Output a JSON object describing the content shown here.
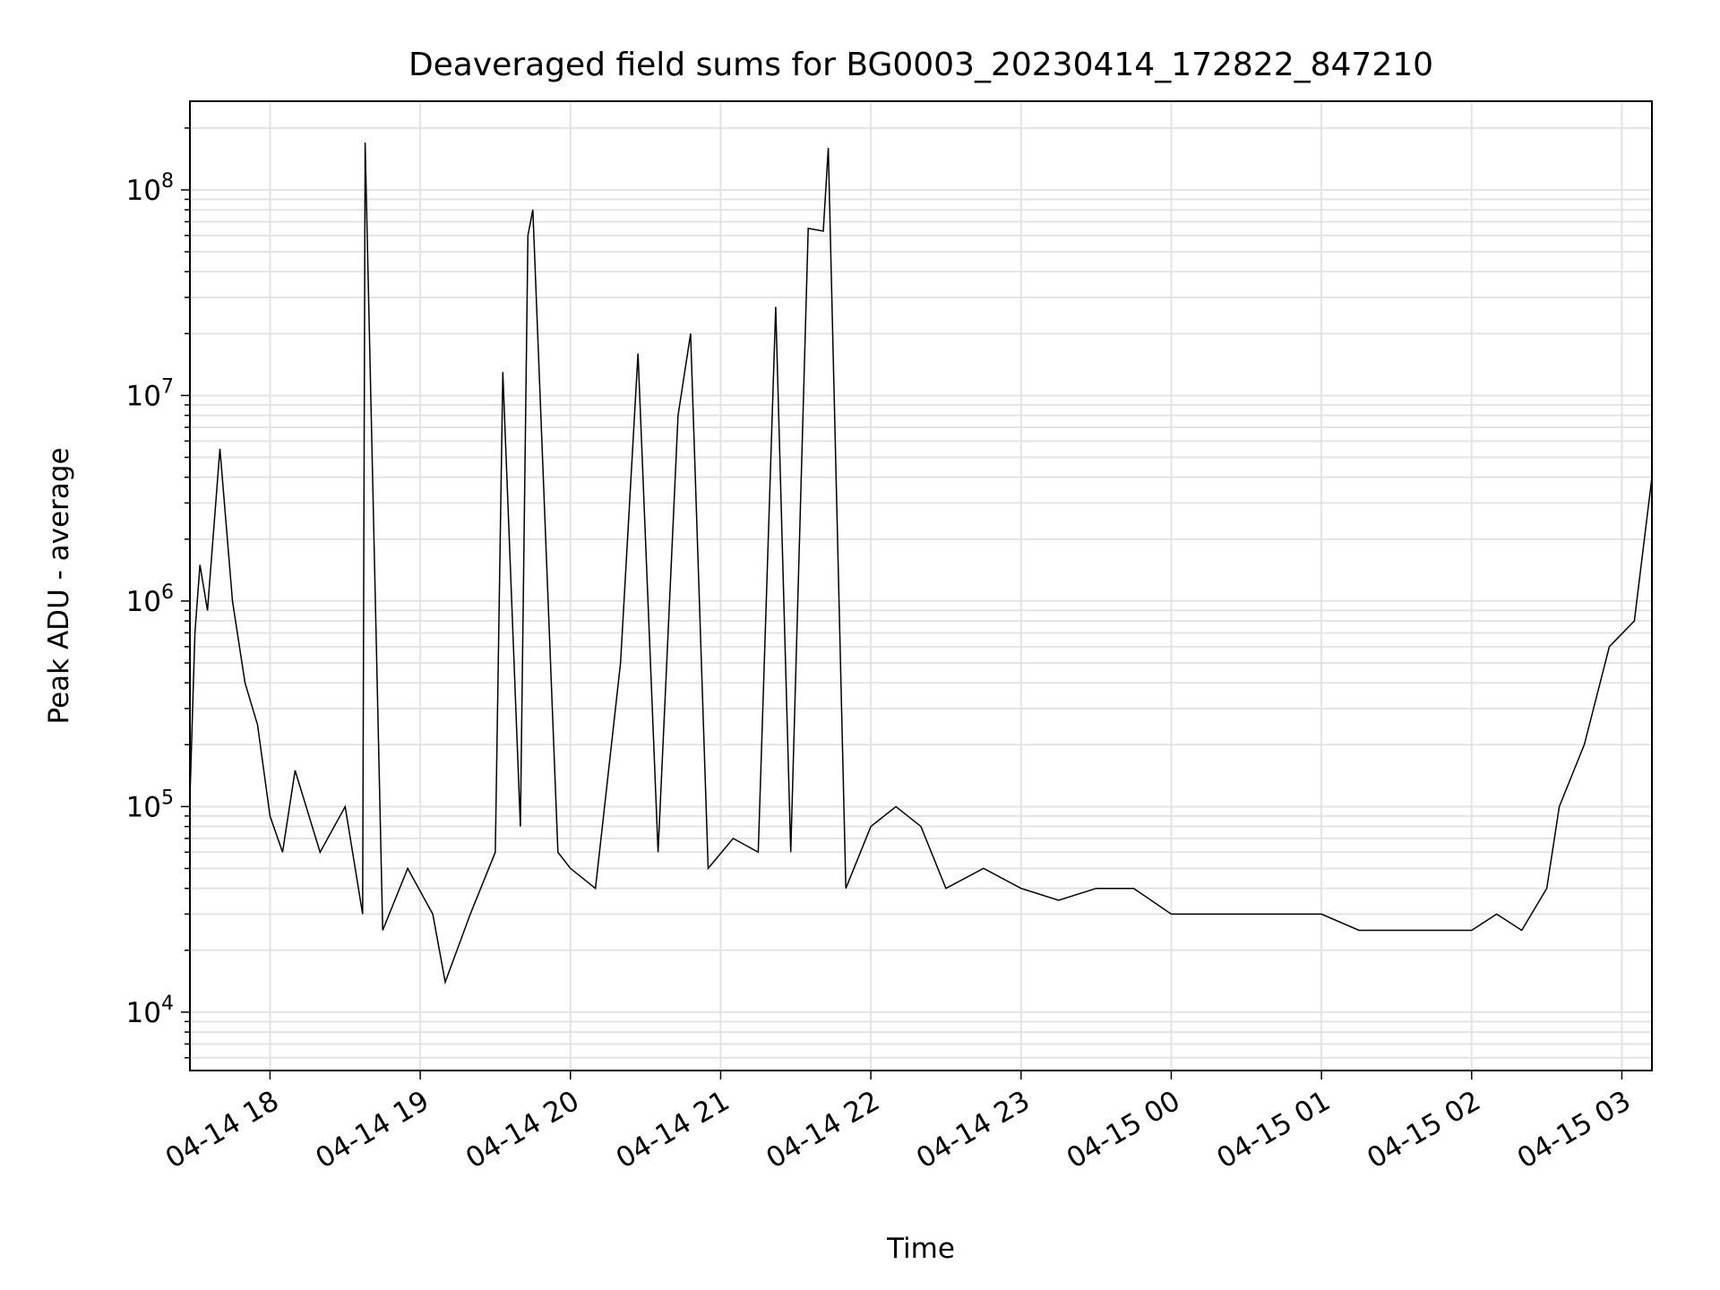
{
  "chart_data": {
    "type": "line",
    "title": "Deaveraged field sums for BG0003_20230414_172822_847210",
    "xlabel": "Time",
    "ylabel": "Peak ADU - average",
    "x_scale": "time",
    "y_scale": "log",
    "xlim": [
      "2023-04-14 17:28",
      "2023-04-15 03:12"
    ],
    "ylim": [
      5200,
      270000000
    ],
    "grid": true,
    "legend": "none",
    "line_color": "#000000",
    "x_ticks": [
      {
        "value": "2023-04-14 18:00",
        "label": "04-14 18"
      },
      {
        "value": "2023-04-14 19:00",
        "label": "04-14 19"
      },
      {
        "value": "2023-04-14 20:00",
        "label": "04-14 20"
      },
      {
        "value": "2023-04-14 21:00",
        "label": "04-14 21"
      },
      {
        "value": "2023-04-14 22:00",
        "label": "04-14 22"
      },
      {
        "value": "2023-04-14 23:00",
        "label": "04-14 23"
      },
      {
        "value": "2023-04-15 00:00",
        "label": "04-15 00"
      },
      {
        "value": "2023-04-15 01:00",
        "label": "04-15 01"
      },
      {
        "value": "2023-04-15 02:00",
        "label": "04-15 02"
      },
      {
        "value": "2023-04-15 03:00",
        "label": "04-15 03"
      }
    ],
    "y_ticks": [
      {
        "value": 10000,
        "base": "10",
        "exp": "4"
      },
      {
        "value": 100000,
        "base": "10",
        "exp": "5"
      },
      {
        "value": 1000000,
        "base": "10",
        "exp": "6"
      },
      {
        "value": 10000000,
        "base": "10",
        "exp": "7"
      },
      {
        "value": 100000000,
        "base": "10",
        "exp": "8"
      }
    ],
    "series": [
      {
        "x": [
          "2023-04-14 17:28",
          "2023-04-14 17:30",
          "2023-04-14 17:32",
          "2023-04-14 17:35",
          "2023-04-14 17:40",
          "2023-04-14 17:45",
          "2023-04-14 17:50",
          "2023-04-14 17:55",
          "2023-04-14 18:00",
          "2023-04-14 18:05",
          "2023-04-14 18:10",
          "2023-04-14 18:20",
          "2023-04-14 18:30",
          "2023-04-14 18:37",
          "2023-04-14 18:38",
          "2023-04-14 18:45",
          "2023-04-14 18:55",
          "2023-04-14 19:05",
          "2023-04-14 19:10",
          "2023-04-14 19:20",
          "2023-04-14 19:30",
          "2023-04-14 19:33",
          "2023-04-14 19:40",
          "2023-04-14 19:43",
          "2023-04-14 19:45",
          "2023-04-14 19:55",
          "2023-04-14 20:00",
          "2023-04-14 20:10",
          "2023-04-14 20:20",
          "2023-04-14 20:27",
          "2023-04-14 20:35",
          "2023-04-14 20:43",
          "2023-04-14 20:48",
          "2023-04-14 20:55",
          "2023-04-14 21:05",
          "2023-04-14 21:15",
          "2023-04-14 21:22",
          "2023-04-14 21:28",
          "2023-04-14 21:35",
          "2023-04-14 21:41",
          "2023-04-14 21:43",
          "2023-04-14 21:50",
          "2023-04-14 22:00",
          "2023-04-14 22:10",
          "2023-04-14 22:20",
          "2023-04-14 22:30",
          "2023-04-14 22:45",
          "2023-04-14 23:00",
          "2023-04-14 23:15",
          "2023-04-14 23:30",
          "2023-04-14 23:45",
          "2023-04-15 00:00",
          "2023-04-15 00:15",
          "2023-04-15 00:30",
          "2023-04-15 00:45",
          "2023-04-15 01:00",
          "2023-04-15 01:15",
          "2023-04-15 01:30",
          "2023-04-15 01:45",
          "2023-04-15 02:00",
          "2023-04-15 02:10",
          "2023-04-15 02:20",
          "2023-04-15 02:30",
          "2023-04-15 02:35",
          "2023-04-15 02:45",
          "2023-04-15 02:55",
          "2023-04-15 03:05",
          "2023-04-15 03:12"
        ],
        "y": [
          110000,
          700000,
          1500000,
          900000,
          5500000,
          1000000,
          400000,
          250000,
          90000,
          60000,
          150000,
          60000,
          100000,
          30000,
          170000000,
          25000,
          50000,
          30000,
          14000,
          30000,
          60000,
          13000000,
          80000,
          60000000,
          80000000,
          60000,
          50000,
          40000,
          500000,
          16000000,
          60000,
          8000000,
          20000000,
          50000,
          70000,
          60000,
          27000000,
          60000,
          65000000,
          63000000,
          160000000,
          40000,
          80000,
          100000,
          80000,
          40000,
          50000,
          40000,
          35000,
          40000,
          40000,
          30000,
          30000,
          30000,
          30000,
          30000,
          25000,
          25000,
          25000,
          25000,
          30000,
          25000,
          40000,
          100000,
          200000,
          600000,
          800000,
          4000000
        ]
      }
    ]
  }
}
